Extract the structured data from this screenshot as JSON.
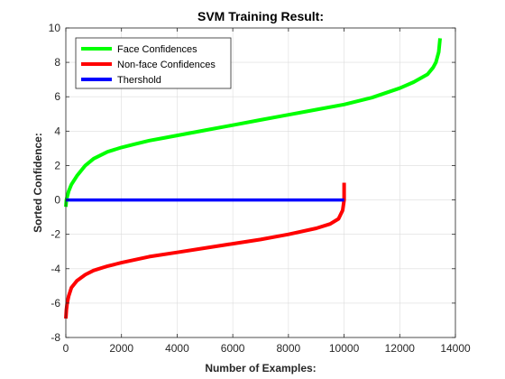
{
  "chart_data": {
    "type": "line",
    "title": "SVM Training Result:",
    "xlabel": "Number of Examples:",
    "ylabel": "Sorted Confidence:",
    "xlim": [
      0,
      14000
    ],
    "ylim": [
      -8,
      10
    ],
    "xticks": [
      0,
      2000,
      4000,
      6000,
      8000,
      10000,
      12000,
      14000
    ],
    "xtick_labels": [
      "0",
      "2000",
      "4000",
      "6000",
      "8000",
      "10000",
      "12000",
      "14000"
    ],
    "yticks": [
      -8,
      -6,
      -4,
      -2,
      0,
      2,
      4,
      6,
      8,
      10
    ],
    "ytick_labels": [
      "-8",
      "-6",
      "-4",
      "-2",
      "0",
      "2",
      "4",
      "6",
      "8",
      "10"
    ],
    "grid": true,
    "legend_position": "top-left",
    "series": [
      {
        "name": "Face Confidences",
        "color": "#00ff00",
        "x": [
          0,
          20,
          100,
          200,
          400,
          700,
          1000,
          1500,
          2000,
          2500,
          3000,
          3500,
          4000,
          5000,
          6000,
          7000,
          8000,
          9000,
          10000,
          11000,
          12000,
          12500,
          13000,
          13200,
          13300,
          13400,
          13450
        ],
        "y": [
          -0.4,
          0.0,
          0.5,
          0.9,
          1.4,
          2.0,
          2.4,
          2.8,
          3.05,
          3.25,
          3.45,
          3.6,
          3.75,
          4.05,
          4.35,
          4.65,
          4.95,
          5.25,
          5.55,
          5.95,
          6.5,
          6.85,
          7.3,
          7.7,
          8.0,
          8.6,
          9.4
        ]
      },
      {
        "name": "Non-face Confidences",
        "color": "#ff0000",
        "x": [
          0,
          20,
          50,
          100,
          200,
          400,
          700,
          1000,
          1500,
          2000,
          3000,
          4000,
          5000,
          6000,
          7000,
          8000,
          9000,
          9500,
          9800,
          9950,
          10000,
          10000
        ],
        "y": [
          -6.9,
          -6.4,
          -6.0,
          -5.6,
          -5.1,
          -4.7,
          -4.35,
          -4.1,
          -3.85,
          -3.65,
          -3.3,
          -3.05,
          -2.8,
          -2.55,
          -2.3,
          -2.0,
          -1.65,
          -1.4,
          -1.1,
          -0.6,
          0.0,
          1.0
        ]
      },
      {
        "name": "Thershold",
        "color": "#0000ff",
        "x": [
          0,
          10000
        ],
        "y": [
          0,
          0
        ]
      }
    ]
  }
}
